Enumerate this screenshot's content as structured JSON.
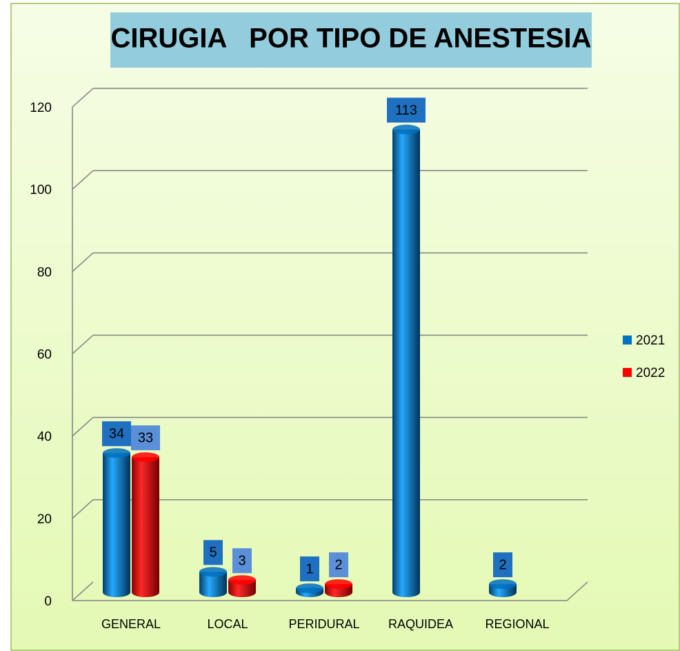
{
  "chart_data": {
    "type": "bar",
    "title": "CIRUGIA   POR TIPO DE ANESTESIA",
    "categories": [
      "GENERAL",
      "LOCAL",
      "PERIDURAL",
      "RAQUIDEA",
      "REGIONAL"
    ],
    "series": [
      {
        "name": "2021",
        "color": "#0070c0",
        "values": [
          34,
          5,
          1,
          113,
          2
        ]
      },
      {
        "name": "2022",
        "color": "#ff0000",
        "values": [
          33,
          3,
          2,
          null,
          null
        ]
      }
    ],
    "ylim": [
      0,
      120
    ],
    "yticks": [
      0,
      20,
      40,
      60,
      80,
      100,
      120
    ],
    "grid": true,
    "legend": "right"
  }
}
